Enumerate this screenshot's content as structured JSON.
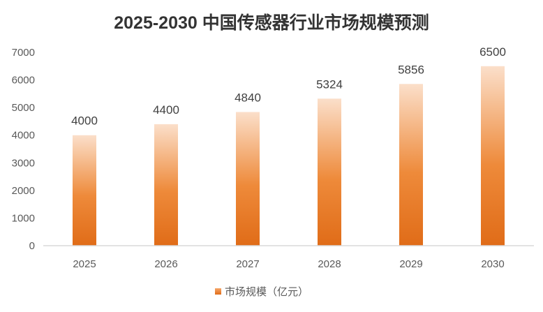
{
  "chart_data": {
    "type": "bar",
    "title": "2025-2030 中国传感器行业市场规模预测",
    "categories": [
      "2025",
      "2026",
      "2027",
      "2028",
      "2029",
      "2030"
    ],
    "series": [
      {
        "name": "市场规模（亿元）",
        "values": [
          4000,
          4400,
          4840,
          5324,
          5856,
          6500
        ]
      }
    ],
    "data_labels": [
      "4000",
      "4400",
      "4840",
      "5324",
      "5856",
      "6500"
    ],
    "xlabel": "",
    "ylabel": "",
    "ylim": [
      0,
      7000
    ],
    "yticks": [
      "0",
      "1000",
      "2000",
      "3000",
      "4000",
      "5000",
      "6000",
      "7000"
    ],
    "grid": false,
    "legend": {
      "position": "bottom",
      "entries": [
        "市场规模（亿元）"
      ]
    },
    "colors": {
      "bar_top": "#fbdfca",
      "bar_mid": "#ee8a3a",
      "bar_bottom": "#e06c18",
      "axis": "#d9d9d9",
      "legend_swatch": "#ed7d31"
    }
  }
}
